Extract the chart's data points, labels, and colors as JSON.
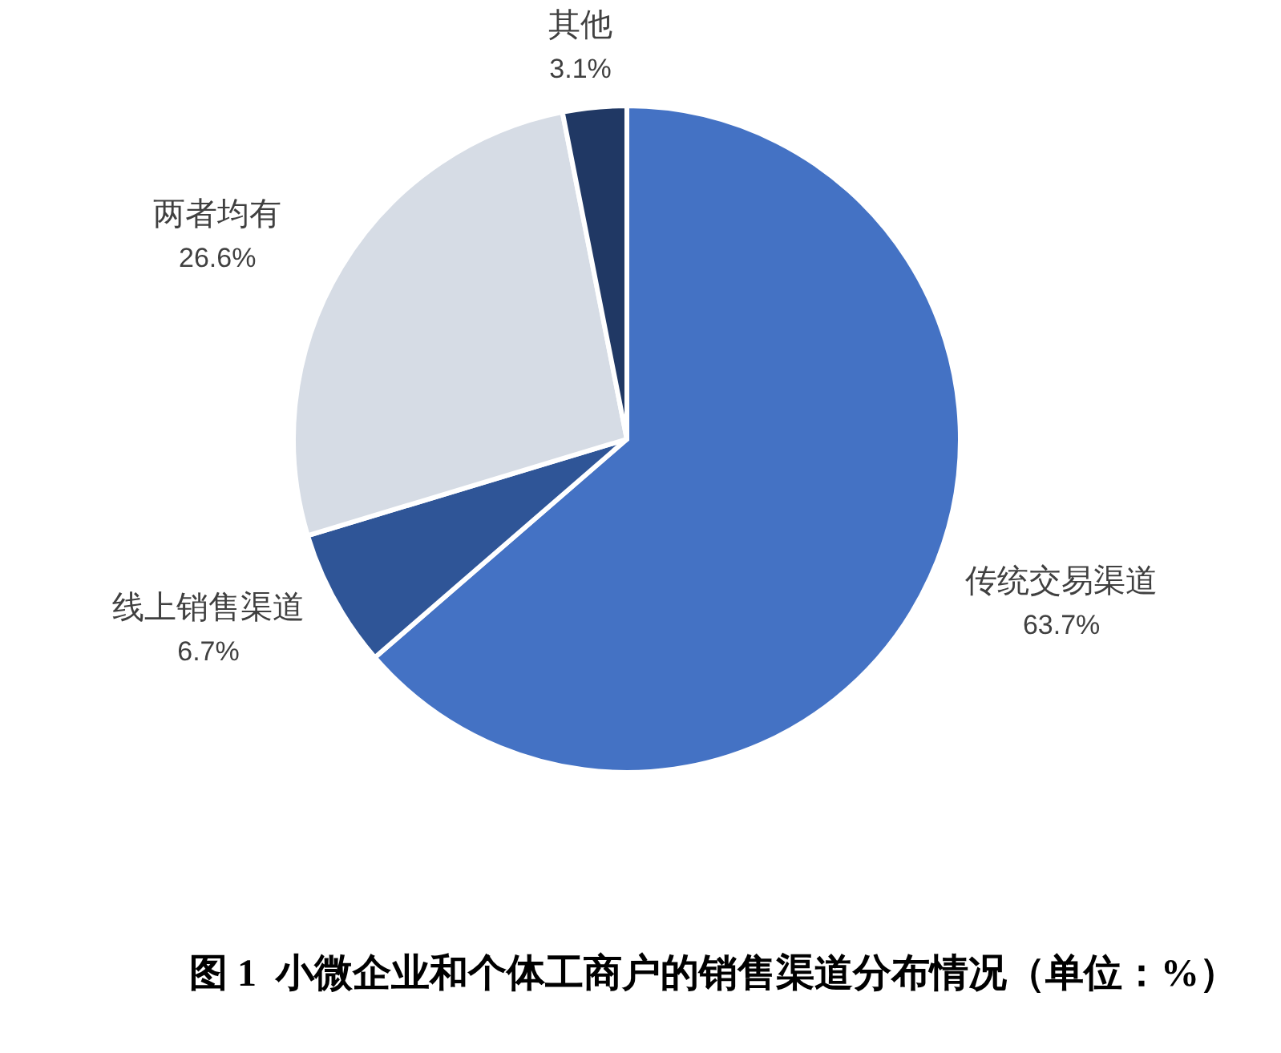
{
  "chart_data": {
    "type": "pie",
    "title": "图 1  小微企业和个体工商户的销售渠道分布情况（单位：%）",
    "categories": [
      "传统交易渠道",
      "线上销售渠道",
      "两者均有",
      "其他"
    ],
    "values": [
      63.7,
      6.7,
      26.6,
      3.1
    ],
    "value_labels": [
      "63.7%",
      "6.7%",
      "26.6%",
      "3.1%"
    ],
    "colors": [
      "#4472c4",
      "#2f5597",
      "#d6dce5",
      "#203864"
    ]
  }
}
